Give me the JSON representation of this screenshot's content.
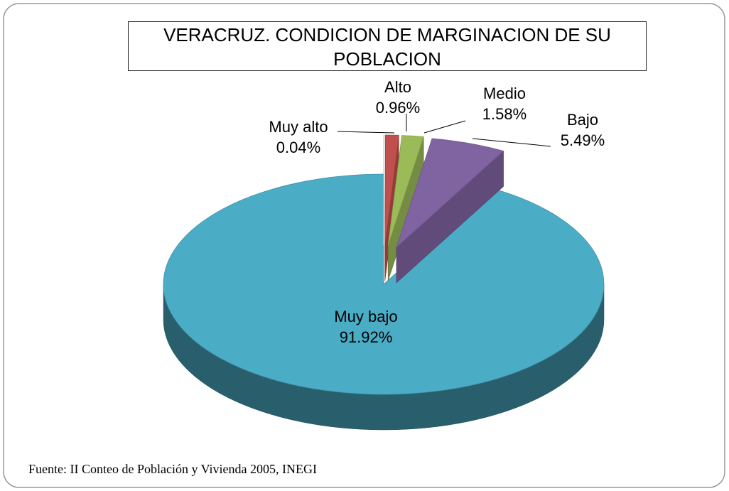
{
  "chart_data": {
    "type": "pie",
    "title": "VERACRUZ. CONDICION DE MARGINACION DE SU POBLACION",
    "categories": [
      "Muy alto",
      "Alto",
      "Medio",
      "Bajo",
      "Muy bajo"
    ],
    "values": [
      0.04,
      0.96,
      1.58,
      5.49,
      91.92
    ],
    "value_labels": [
      "0.04%",
      "0.96%",
      "1.58%",
      "5.49%",
      "91.92%"
    ],
    "colors": [
      "#f2f2f2",
      "#c0504d",
      "#9bbb59",
      "#8064a2",
      "#4bacc6"
    ],
    "source": "Fuente: II Conteo de Población y Vivienda 2005, INEGI"
  }
}
